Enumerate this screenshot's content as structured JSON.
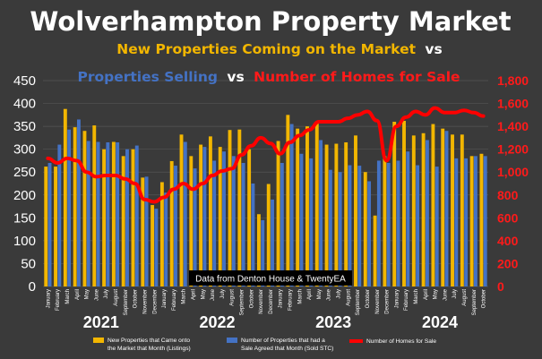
{
  "chart_data": {
    "type": "bar",
    "title": "Wolverhampton Property Market",
    "subtitle": {
      "part1": "New Properties Coming on the Market",
      "vs1": "vs",
      "part2": "Properties Selling",
      "vs2": "vs",
      "part3": "Number of Homes for Sale"
    },
    "source_note": "Data from Denton House & TwentyEA",
    "ylim_left": [
      0,
      450
    ],
    "ylim_right": [
      0,
      1800
    ],
    "left_ticks": [
      "0",
      "50",
      "100",
      "150",
      "200",
      "250",
      "300",
      "350",
      "400",
      "450"
    ],
    "right_ticks": [
      "0",
      "200",
      "400",
      "600",
      "800",
      "1,000",
      "1,200",
      "1,400",
      "1,600",
      "1,800"
    ],
    "years": [
      "2021",
      "2022",
      "2023",
      "2024"
    ],
    "categories": [
      "January",
      "February",
      "March",
      "April",
      "May",
      "June",
      "July",
      "August",
      "September",
      "October",
      "November",
      "December",
      "January",
      "February",
      "March",
      "April",
      "May",
      "June",
      "July",
      "August",
      "September",
      "October",
      "November",
      "December",
      "January",
      "February",
      "March",
      "April",
      "May",
      "June",
      "July",
      "August",
      "September",
      "October",
      "November",
      "December",
      "January",
      "February",
      "March",
      "April",
      "May",
      "June",
      "July",
      "August",
      "September",
      "October"
    ],
    "series": [
      {
        "name": "New Properties that Came onto the Market that Month (Listings)",
        "axis": "left",
        "type": "bar",
        "color": "#f2b600",
        "values": [
          262,
          262,
          388,
          348,
          340,
          352,
          300,
          316,
          285,
          300,
          238,
          178,
          228,
          274,
          332,
          285,
          310,
          328,
          305,
          342,
          343,
          300,
          158,
          224,
          318,
          375,
          345,
          350,
          360,
          310,
          312,
          315,
          330,
          250,
          155,
          285,
          360,
          362,
          330,
          335,
          355,
          345,
          332,
          332,
          285,
          290
        ]
      },
      {
        "name": "Number of Properties that had a Sale Agreed that Month (Sold STC)",
        "axis": "left",
        "type": "bar",
        "color": "#4472c4",
        "values": [
          270,
          310,
          343,
          365,
          318,
          316,
          315,
          315,
          300,
          308,
          240,
          170,
          205,
          264,
          316,
          258,
          305,
          275,
          295,
          285,
          270,
          225,
          145,
          190,
          270,
          355,
          290,
          280,
          320,
          255,
          250,
          265,
          264,
          230,
          275,
          270,
          275,
          295,
          265,
          320,
          262,
          340,
          280,
          280,
          285,
          285
        ]
      },
      {
        "name": "Number of Homes for Sale",
        "axis": "right",
        "type": "line",
        "color": "#ff0000",
        "values": [
          1120,
          1080,
          1120,
          1100,
          1000,
          960,
          970,
          970,
          940,
          900,
          760,
          740,
          780,
          850,
          900,
          850,
          900,
          970,
          1010,
          1030,
          1150,
          1230,
          1300,
          1250,
          1160,
          1260,
          1320,
          1370,
          1440,
          1440,
          1440,
          1470,
          1500,
          1530,
          1450,
          1100,
          1400,
          1480,
          1530,
          1500,
          1560,
          1520,
          1520,
          1540,
          1520,
          1490
        ]
      }
    ],
    "legend_position": "bottom",
    "grid": true
  }
}
